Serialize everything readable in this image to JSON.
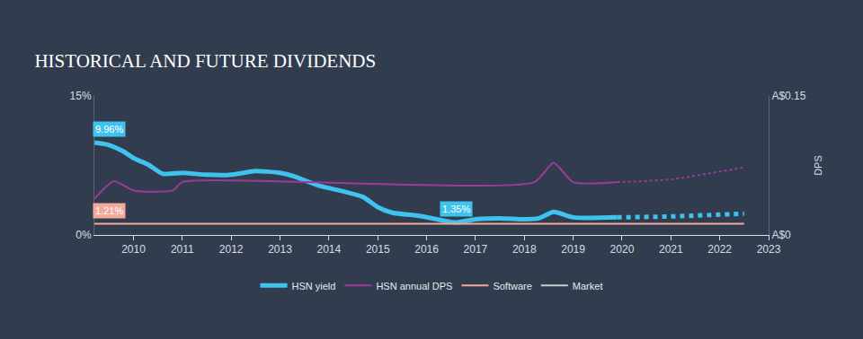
{
  "chart_data": {
    "type": "line",
    "title": "HISTORICAL AND FUTURE DIVIDENDS",
    "y2_title": "DPS",
    "xlim": [
      2009.2,
      2023
    ],
    "xticks": [
      2010,
      2011,
      2012,
      2013,
      2014,
      2015,
      2016,
      2017,
      2018,
      2019,
      2020,
      2021,
      2022,
      2023
    ],
    "ylim": [
      0,
      15
    ],
    "yticks": [
      {
        "value": 0,
        "label": "0%"
      },
      {
        "value": 15,
        "label": "15%"
      }
    ],
    "y2lim": [
      0,
      0.15
    ],
    "y2ticks": [
      {
        "value": 0,
        "label": "A$0"
      },
      {
        "value": 0.15,
        "label": "A$0.15"
      }
    ],
    "grid": false,
    "legend": "bottom",
    "series": [
      {
        "name": "HSN yield",
        "color": "#3fc3ee",
        "line_style": "solid",
        "x": [
          2009.2,
          2009.5,
          2009.8,
          2010.0,
          2010.3,
          2010.6,
          2011.0,
          2011.5,
          2012.0,
          2012.5,
          2013.0,
          2013.3,
          2013.8,
          2014.3,
          2014.7,
          2015.0,
          2015.3,
          2015.8,
          2016.3,
          2016.6,
          2017.0,
          2017.5,
          2018.0,
          2018.3,
          2018.6,
          2019.0,
          2019.9
        ],
        "values": [
          9.96,
          9.7,
          9.0,
          8.3,
          7.6,
          6.6,
          6.7,
          6.5,
          6.5,
          6.9,
          6.7,
          6.3,
          5.3,
          4.7,
          4.1,
          3.0,
          2.4,
          2.1,
          1.6,
          1.35,
          1.7,
          1.8,
          1.7,
          1.8,
          2.5,
          1.9,
          1.9
        ]
      },
      {
        "name": "HSN yield",
        "color": "#3fc3ee",
        "line_style": "dot",
        "x": [
          2019.9,
          2021.0,
          2022.5
        ],
        "values": [
          1.9,
          2.0,
          2.3
        ]
      },
      {
        "name": "HSN annual DPS",
        "color": "#9c3a9a",
        "line_style": "solid",
        "axis": "y2",
        "x": [
          2009.2,
          2009.6,
          2010.0,
          2010.8,
          2011.0,
          2018.2,
          2018.6,
          2019.0,
          2019.9
        ],
        "values": [
          0.039,
          0.058,
          0.048,
          0.048,
          0.057,
          0.057,
          0.078,
          0.057,
          0.057
        ]
      },
      {
        "name": "HSN annual DPS",
        "color": "#9c3a9a",
        "line_style": "dot",
        "axis": "y2",
        "x": [
          2019.9,
          2021.0,
          2022.5
        ],
        "values": [
          0.057,
          0.06,
          0.073
        ]
      },
      {
        "name": "Software",
        "color": "#f3a99b",
        "line_style": "solid",
        "x": [
          2009.2,
          2022.5
        ],
        "values": [
          1.21,
          1.21
        ]
      },
      {
        "name": "Market",
        "color": "#c9ccd1",
        "line_style": "solid",
        "x": [
          2009.2,
          2022.5
        ],
        "values": [
          null,
          null
        ]
      }
    ],
    "annotations": [
      {
        "text": "9.96%",
        "x": 2009.5,
        "y": 9.96,
        "color": "#3fc3ee"
      },
      {
        "text": "1.35%",
        "x": 2016.6,
        "y": 1.35,
        "color": "#3fc3ee"
      },
      {
        "text": "1.21%",
        "x": 2009.5,
        "y": 1.21,
        "color": "#f3a99b"
      }
    ]
  }
}
